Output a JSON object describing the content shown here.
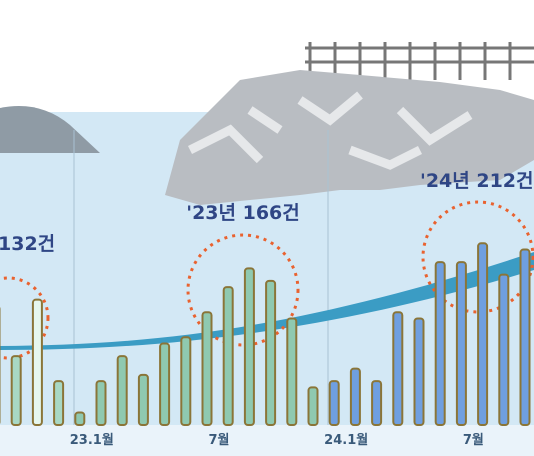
{
  "chart_data": {
    "type": "bar",
    "annotations": [
      "132건",
      "'23년 166건",
      "'24년 212건"
    ],
    "categories": [
      null,
      null,
      null,
      null,
      "23.1월",
      null,
      null,
      null,
      null,
      null,
      "7월",
      null,
      null,
      null,
      null,
      null,
      "24.1월",
      null,
      null,
      null,
      null,
      null,
      "7월",
      null,
      null,
      null
    ],
    "values": [
      19,
      11,
      20,
      7,
      2,
      7,
      11,
      8,
      13,
      14,
      18,
      22,
      25,
      23,
      17,
      6,
      7,
      9,
      7,
      18,
      17,
      26,
      26,
      29,
      24,
      28
    ],
    "colors": [
      "#a8d8c4",
      "#a8d8c4",
      "#e6f7ee",
      "#a8d8c4",
      "#8fc9b0",
      "#8fc9b0",
      "#8fc9b0",
      "#8fc9b0",
      "#8fc9b0",
      "#8fc9b0",
      "#8fc9b0",
      "#8fc9b0",
      "#8fc9b0",
      "#8fc9b0",
      "#8fc9b0",
      "#8fc9b0",
      "#6f9fe0",
      "#6f9fe0",
      "#6f9fe0",
      "#6f9fe0",
      "#6f9fe0",
      "#6f9fe0",
      "#6f9fe0",
      "#6f9fe0",
      "#6f9fe0",
      "#6f9fe0"
    ],
    "ylim": [
      0,
      30
    ]
  }
}
